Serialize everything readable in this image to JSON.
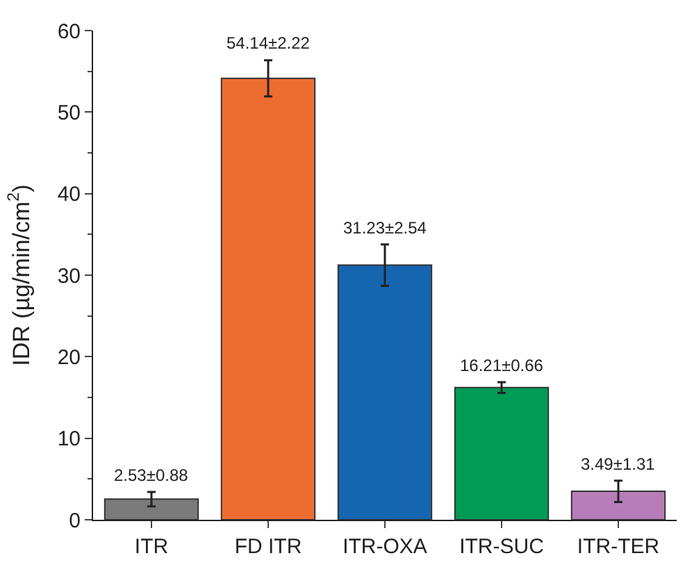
{
  "chart_data": {
    "type": "bar",
    "ylabel": "IDR (µg/min/cm$^{2}$)",
    "categories": [
      "ITR",
      "FD ITR",
      "ITR-OXA",
      "ITR-SUC",
      "ITR-TER"
    ],
    "values": [
      2.53,
      54.14,
      31.23,
      16.21,
      3.49
    ],
    "errors": [
      0.88,
      2.22,
      2.54,
      0.66,
      1.31
    ],
    "colors": [
      "#7a7a7a",
      "#ed6d31",
      "#1565b0",
      "#009b55",
      "#b77db8"
    ],
    "value_labels": [
      "2.53±0.88",
      "54.14±2.22",
      "31.23±2.54",
      "16.21±0.66",
      "3.49±1.31"
    ],
    "ylim": [
      0,
      60
    ],
    "yticks": [
      0,
      10,
      20,
      30,
      40,
      50,
      60
    ]
  }
}
